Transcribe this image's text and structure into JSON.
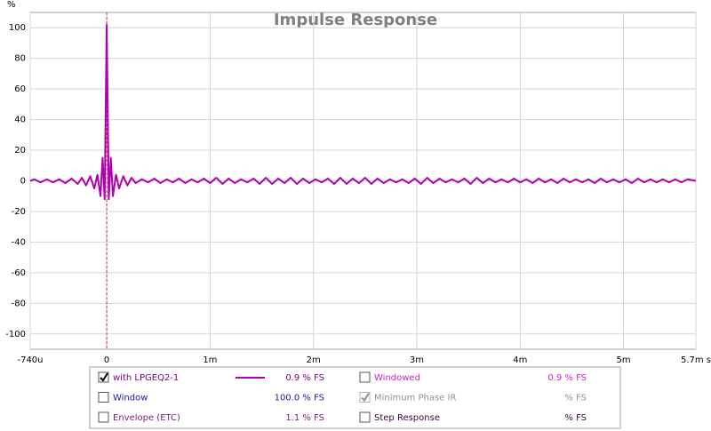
{
  "chart_data": {
    "type": "line",
    "title": "Impulse Response",
    "y_label": "%",
    "x": [
      -0.74,
      -0.7,
      -0.64,
      -0.58,
      -0.52,
      -0.46,
      -0.4,
      -0.34,
      -0.28,
      -0.24,
      -0.2,
      -0.16,
      -0.12,
      -0.09,
      -0.06,
      -0.04,
      -0.02,
      0,
      0.02,
      0.04,
      0.06,
      0.09,
      0.12,
      0.16,
      0.2,
      0.24,
      0.28,
      0.34,
      0.4,
      0.46,
      0.52,
      0.58,
      0.64,
      0.7,
      0.76,
      0.82,
      0.88,
      0.94,
      1,
      1.06,
      1.12,
      1.18,
      1.24,
      1.3,
      1.36,
      1.42,
      1.48,
      1.54,
      1.6,
      1.66,
      1.72,
      1.78,
      1.84,
      1.9,
      1.96,
      2.02,
      2.08,
      2.14,
      2.2,
      2.26,
      2.32,
      2.38,
      2.44,
      2.5,
      2.56,
      2.62,
      2.68,
      2.74,
      2.8,
      2.86,
      2.92,
      2.98,
      3.04,
      3.1,
      3.16,
      3.22,
      3.28,
      3.34,
      3.4,
      3.46,
      3.52,
      3.58,
      3.64,
      3.7,
      3.76,
      3.82,
      3.88,
      3.94,
      4,
      4.06,
      4.12,
      4.18,
      4.24,
      4.3,
      4.36,
      4.42,
      4.48,
      4.54,
      4.6,
      4.66,
      4.72,
      4.78,
      4.84,
      4.9,
      4.96,
      5.02,
      5.08,
      5.14,
      5.2,
      5.26,
      5.32,
      5.38,
      5.44,
      5.5,
      5.56,
      5.62,
      5.7
    ],
    "series": [
      {
        "name": "with LPGEQ2-1",
        "color": "#b000b0",
        "values": [
          0,
          1,
          -1,
          1,
          -1,
          1,
          -1.5,
          1.5,
          -2,
          2,
          -3,
          3,
          -5,
          4,
          -10,
          15,
          -12,
          102,
          -12,
          15,
          -10,
          4,
          -5,
          3,
          -3,
          2,
          -1.5,
          1,
          -1,
          1.5,
          -1.5,
          1,
          -1,
          1.5,
          -1.5,
          1,
          -1,
          1.5,
          -1.5,
          2,
          -2,
          1.5,
          -1.5,
          1,
          -1,
          1.5,
          -2,
          2,
          -2,
          1.5,
          -1.5,
          2,
          -2,
          1.5,
          -1.5,
          1,
          -1,
          1.5,
          -2,
          2,
          -2,
          1.5,
          -1.5,
          2,
          -2,
          1.5,
          -1.5,
          1,
          -1,
          1,
          -1.5,
          1.5,
          -2,
          2,
          -1.5,
          1.5,
          -1,
          1,
          -1,
          1.5,
          -2,
          2,
          -1.5,
          1.5,
          -1,
          1,
          -1,
          1.5,
          -1,
          1,
          -1.5,
          1.5,
          -1,
          1,
          -1.5,
          1.5,
          -1,
          1,
          -1,
          1,
          -1.5,
          1.5,
          -1,
          1,
          -1,
          1,
          -1.5,
          1.5,
          -1,
          1,
          -1,
          1,
          -1,
          1,
          -1,
          1,
          0
        ]
      }
    ],
    "xlim": [
      -0.74,
      5.7
    ],
    "xticks": [
      {
        "value": -0.74,
        "label": "-740u"
      },
      0,
      {
        "value": 1,
        "label": "1m"
      },
      {
        "value": 2,
        "label": "2m"
      },
      {
        "value": 3,
        "label": "3m"
      },
      {
        "value": 4,
        "label": "4m"
      },
      {
        "value": 5,
        "label": "5m"
      },
      {
        "value": 5.7,
        "label": "5.7m s"
      }
    ],
    "ylim": [
      -110,
      110
    ],
    "yticks": [
      -100,
      -80,
      -60,
      -40,
      -20,
      0,
      20,
      40,
      60,
      80,
      100
    ],
    "grid": true,
    "cursor_x": 0,
    "cursor_color": "#d03030"
  },
  "panel": {
    "items": [
      {
        "checked": true,
        "value": "0.9 % FS",
        "color": "#800080"
      },
      {
        "label": "Windowed",
        "checked": false,
        "value": "0.9 % FS",
        "color": "#d020d0"
      },
      {
        "label": "Window",
        "checked": false,
        "value": "100.0 % FS",
        "color": "#1a1aa0"
      },
      {
        "label": "Minimum Phase IR",
        "checked": true,
        "disabled": true,
        "value": "% FS",
        "color": "#909090"
      },
      {
        "label": "Envelope (ETC)",
        "checked": false,
        "value": "1.1 % FS",
        "color": "#7a1a7a"
      },
      {
        "label": "Step Response",
        "checked": false,
        "value": "% FS",
        "color": "#400040"
      }
    ]
  }
}
